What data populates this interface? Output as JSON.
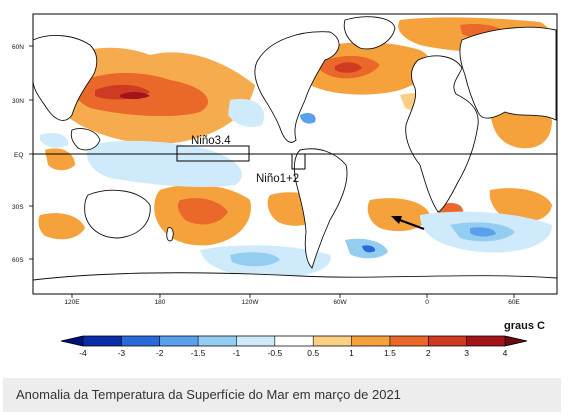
{
  "map": {
    "lat_labels": [
      "60N",
      "30N",
      "EQ",
      "30S",
      "60S"
    ],
    "lon_labels": [
      "120E",
      "180",
      "120W",
      "60W",
      "0",
      "60E"
    ],
    "region_labels": [
      "Niño3.4",
      "Niño1+2"
    ]
  },
  "colorbar": {
    "unit_label": "graus C",
    "ticks": [
      "-4",
      "-3",
      "-2",
      "-1.5",
      "-1",
      "-0.5",
      "0.5",
      "1",
      "1.5",
      "2",
      "3",
      "4"
    ],
    "colors": [
      "#0a2aa8",
      "#2a6ad8",
      "#5aa0ec",
      "#94cdf2",
      "#cfeafa",
      "#ffffff",
      "#fbd084",
      "#f6a23c",
      "#e9682a",
      "#cf3b22",
      "#a0141a"
    ]
  },
  "caption": "Anomalia da Temperatura da Superfície do Mar em março de 2021"
}
